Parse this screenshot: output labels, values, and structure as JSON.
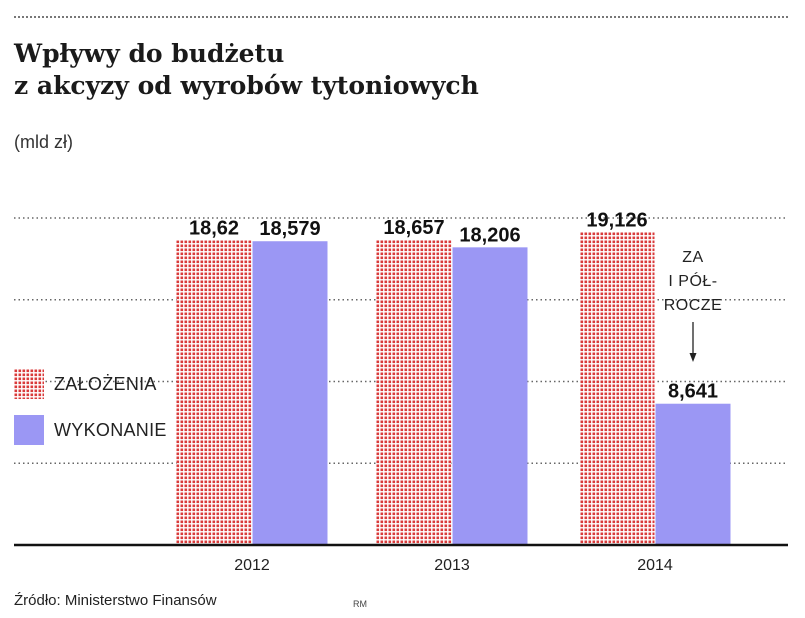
{
  "title_lines": [
    "Wpływy do budżetu",
    "z akcyzy od wyrobów tytoniowych"
  ],
  "unit": "(mld zł)",
  "source": "Źródło: Ministerstwo Finansów",
  "author": "RM",
  "colors": {
    "planned_dot": "#d93a3a",
    "executed": "#9b97f4",
    "grid": "#666666",
    "axis": "#111111"
  },
  "chart_data": {
    "type": "bar",
    "categories": [
      "2012",
      "2013",
      "2014"
    ],
    "ylim": [
      0,
      20
    ],
    "grid": true,
    "legend": "left",
    "series": [
      {
        "name": "ZAŁOŻENIA",
        "values": [
          18.62,
          18.657,
          19.126
        ],
        "labels": [
          "18,62",
          "18,657",
          "19,126"
        ],
        "style": "dotted"
      },
      {
        "name": "WYKONANIE",
        "values": [
          18.579,
          18.206,
          8.641
        ],
        "labels": [
          "18,579",
          "18,206",
          "8,641"
        ],
        "style": "solid"
      }
    ],
    "annotations": [
      {
        "category": "2014",
        "series": "WYKONANIE",
        "lines": [
          "ZA",
          "I PÓŁ-",
          "ROCZE"
        ]
      }
    ]
  }
}
